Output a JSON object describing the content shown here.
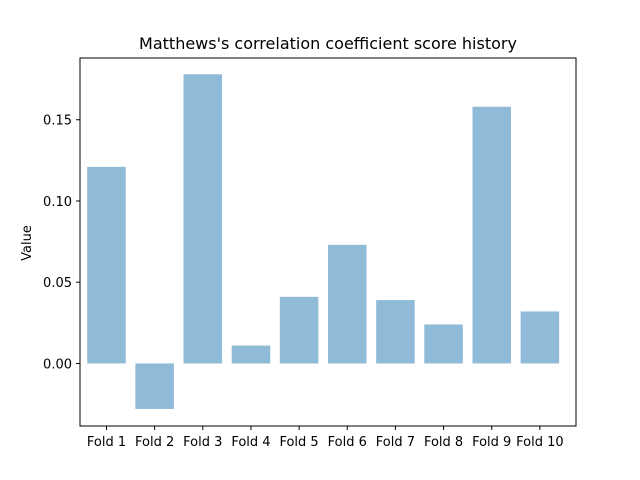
{
  "chart_data": {
    "type": "bar",
    "title": "Matthews's correlation coefficient score history",
    "xlabel": "",
    "ylabel": "Value",
    "categories": [
      "Fold 1",
      "Fold 2",
      "Fold 3",
      "Fold 4",
      "Fold 5",
      "Fold 6",
      "Fold 7",
      "Fold 8",
      "Fold 9",
      "Fold 10"
    ],
    "values": [
      0.121,
      -0.028,
      0.178,
      0.011,
      0.041,
      0.073,
      0.039,
      0.024,
      0.158,
      0.032
    ],
    "ylim": [
      -0.0385,
      0.188
    ],
    "yticks": [
      0.0,
      0.05,
      0.1,
      0.15
    ],
    "ytick_labels": [
      "0.00",
      "0.05",
      "0.10",
      "0.15"
    ],
    "grid": false,
    "legend": false,
    "bar_color": "#1f77b4",
    "bar_opacity": 0.5
  }
}
